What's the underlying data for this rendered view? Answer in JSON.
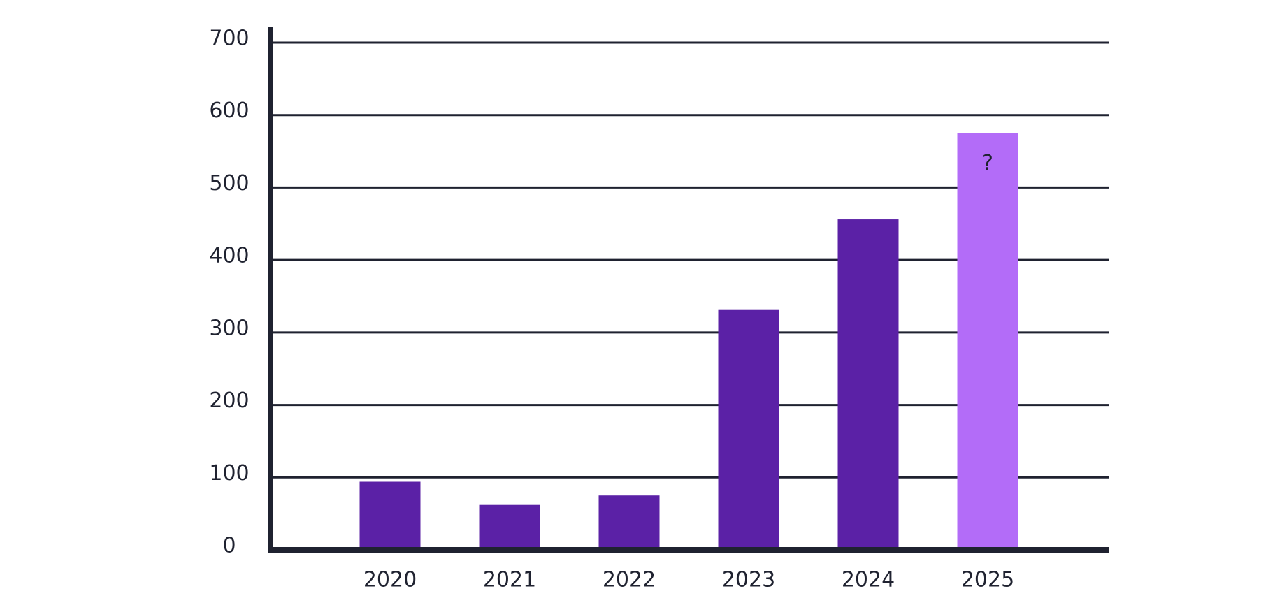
{
  "chart_data": {
    "type": "bar",
    "categories": [
      "2020",
      "2021",
      "2022",
      "2023",
      "2024",
      "2025"
    ],
    "values": [
      94,
      62,
      75,
      331,
      456,
      575
    ],
    "colors": [
      "#5b21a6",
      "#5b21a6",
      "#5b21a6",
      "#5b21a6",
      "#5b21a6",
      "#b36cf8"
    ],
    "ylim": [
      0,
      700
    ],
    "yticks": [
      0,
      100,
      200,
      300,
      400,
      500,
      600,
      700
    ],
    "grid": true,
    "annotation": {
      "text": "?",
      "category": "2025"
    }
  }
}
